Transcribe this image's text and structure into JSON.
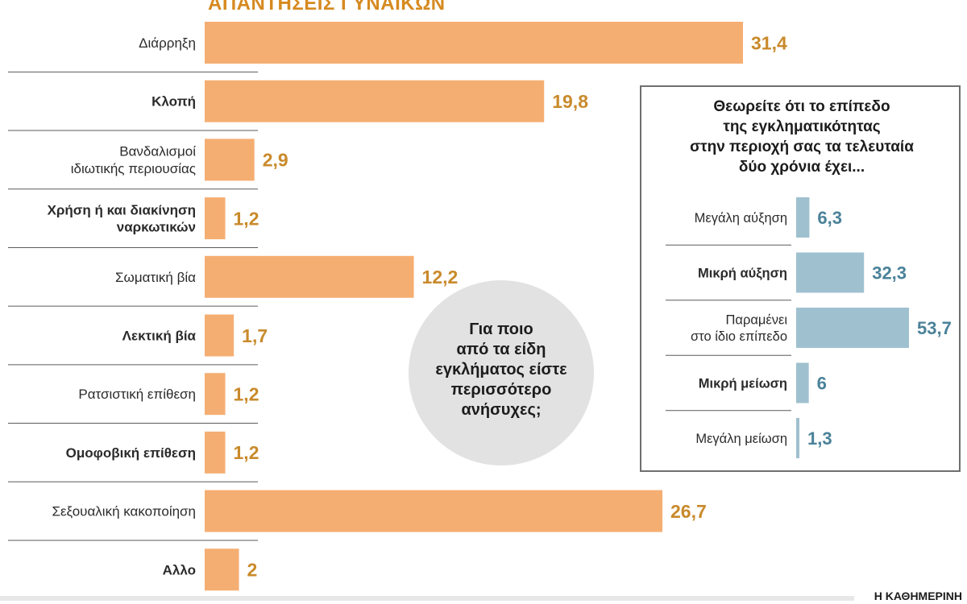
{
  "header": {
    "title": "ΑΠΑΝΤΗΣΕΙΣ ΓΥΝΑΙΚΩΝ"
  },
  "bubble": {
    "lines": [
      "Για ποιο",
      "από τα είδη",
      "εγκλήματος είστε",
      "περισσότερο",
      "ανήσυχες;"
    ]
  },
  "side": {
    "question_lines": [
      "Θεωρείτε ότι το επίπεδο",
      "της εγκληματικότητας",
      "στην περιοχή σας τα τελευταία",
      "δύο χρόνια έχει..."
    ]
  },
  "source": "Η ΚΑΘΗΜΕΡΙΝΗ",
  "colors": {
    "main_bar": "#f5ae72",
    "main_value": "#c98a2b",
    "side_bar": "#9fc0cf",
    "side_value": "#4a8299",
    "label": "#2b2b2b",
    "separator": "#5a5a5a"
  },
  "chart_data": [
    {
      "type": "bar",
      "orientation": "horizontal",
      "title": "ΑΠΑΝΤΗΣΕΙΣ ΓΥΝΑΙΚΩΝ",
      "categories": [
        [
          "Διάρρηξη"
        ],
        [
          "Κλοπή"
        ],
        [
          "Βανδαλισμοί",
          "ιδιωτικής περιουσίας"
        ],
        [
          "Χρήση ή και διακίνηση",
          "ναρκωτικών"
        ],
        [
          "Σωματική βία"
        ],
        [
          "Λεκτική βία"
        ],
        [
          "Ρατσιστική επίθεση"
        ],
        [
          "Ομοφοβική επίθεση"
        ],
        [
          "Σεξουαλική κακοποίηση"
        ],
        [
          "Αλλο"
        ]
      ],
      "bold": [
        false,
        true,
        false,
        true,
        false,
        true,
        false,
        true,
        false,
        true
      ],
      "values": [
        31.4,
        19.8,
        2.9,
        1.2,
        12.2,
        1.7,
        1.2,
        1.2,
        26.7,
        2
      ],
      "value_labels": [
        "31,4",
        "19,8",
        "2,9",
        "1,2",
        "12,2",
        "1,7",
        "1,2",
        "1,2",
        "26,7",
        "2"
      ],
      "xlim": [
        0,
        31.4
      ]
    },
    {
      "type": "bar",
      "orientation": "horizontal",
      "categories": [
        [
          "Μεγάλη αύξηση"
        ],
        [
          "Μικρή αύξηση"
        ],
        [
          "Παραμένει",
          "στο ίδιο επίπεδο"
        ],
        [
          "Μικρή μείωση"
        ],
        [
          "Μεγάλη μείωση"
        ]
      ],
      "bold": [
        false,
        true,
        false,
        true,
        false
      ],
      "values": [
        6.3,
        32.3,
        53.7,
        6,
        1.3
      ],
      "value_labels": [
        "6,3",
        "32,3",
        "53,7",
        "6",
        "1,3"
      ],
      "xlim": [
        0,
        53.7
      ]
    }
  ]
}
